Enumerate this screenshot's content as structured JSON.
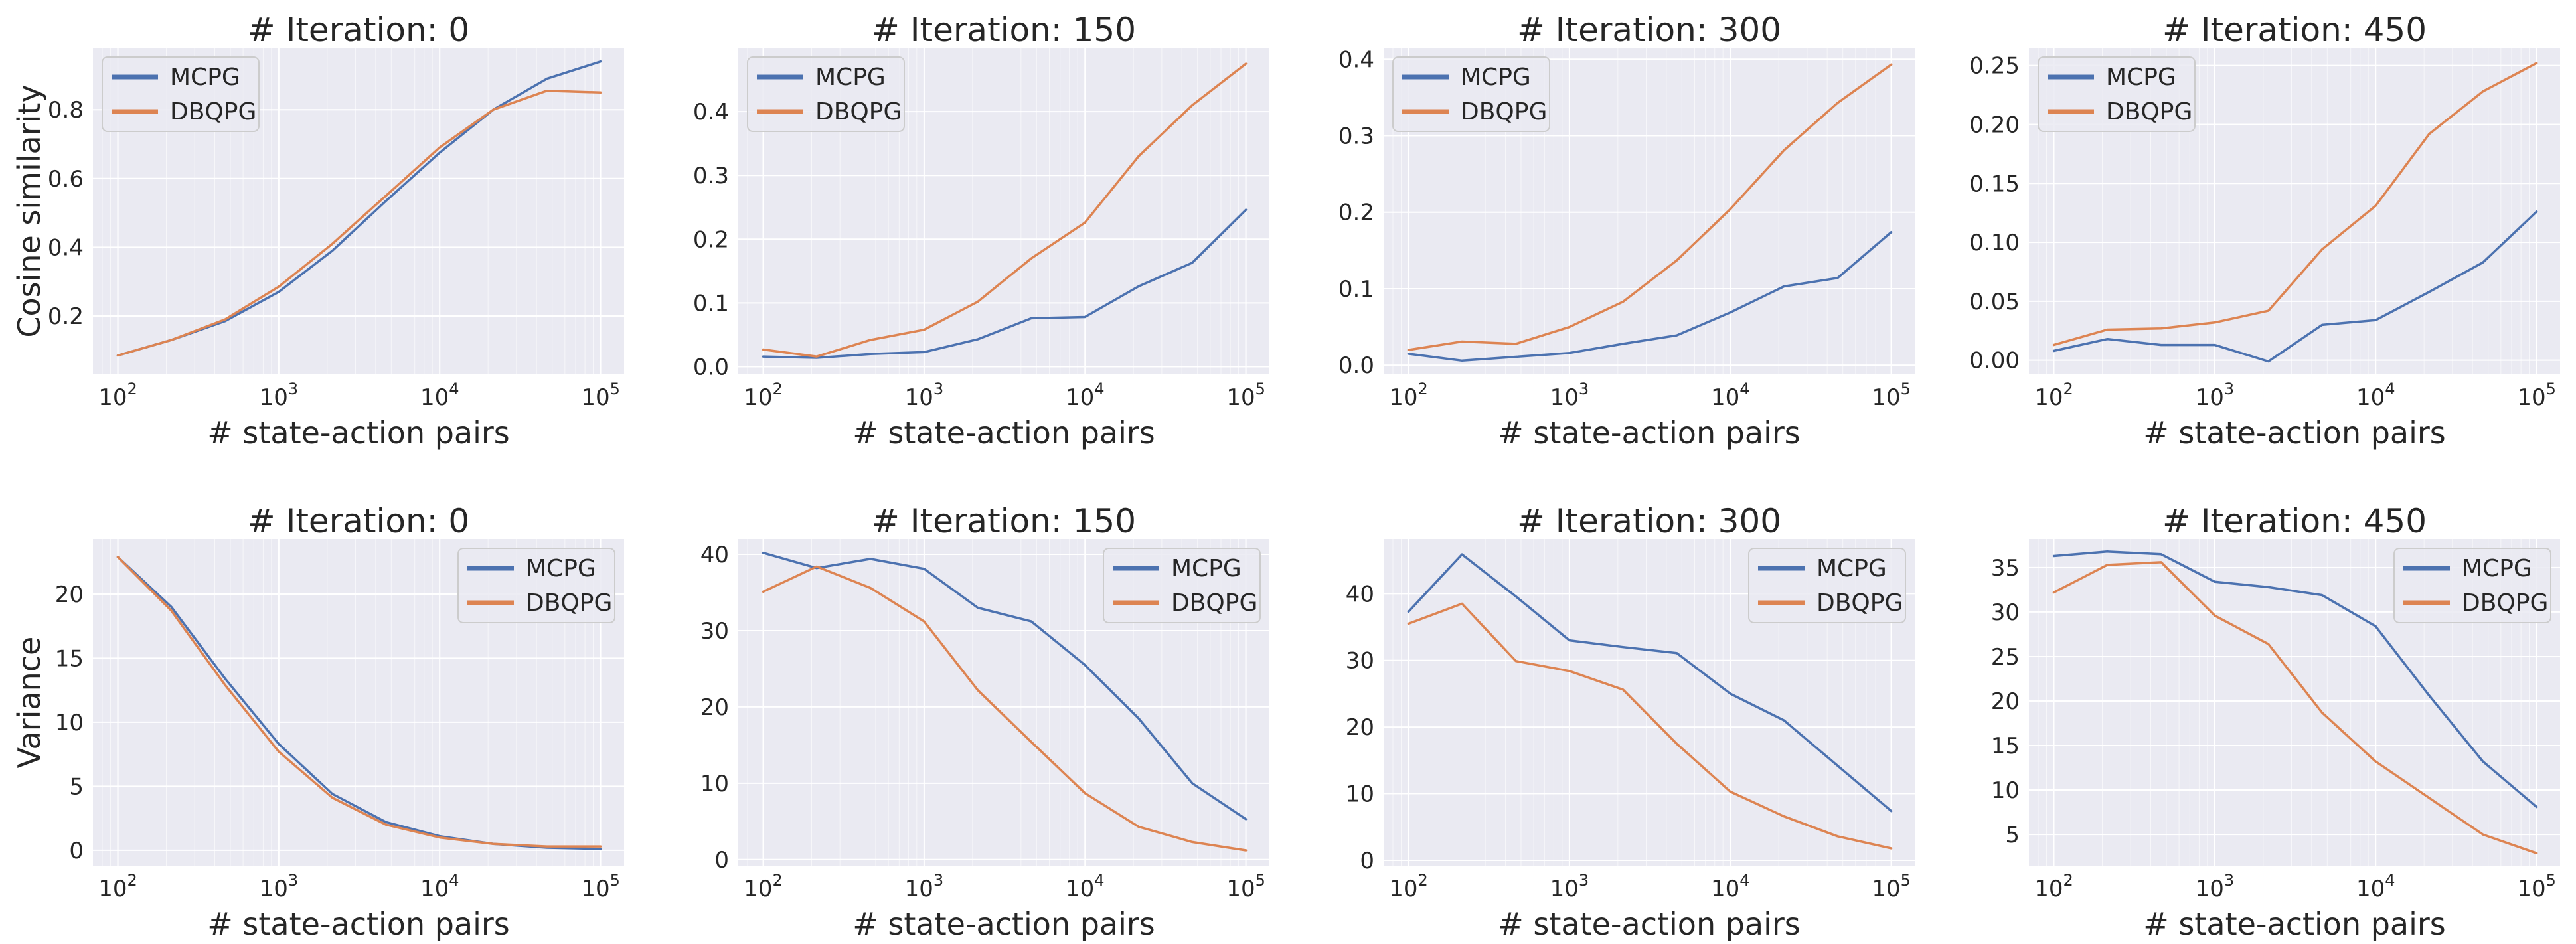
{
  "chart_data": [
    {
      "type": "line",
      "title": "# Iteration: 0",
      "xlabel": "# state-action pairs",
      "ylabel": "Cosine similarity",
      "xscale": "log",
      "xlim": [
        70,
        140000
      ],
      "ylim": [
        0.03,
        0.98
      ],
      "yticks": [
        0.2,
        0.4,
        0.6,
        0.8
      ],
      "ytick_labels": [
        "0.2",
        "0.4",
        "0.6",
        "0.8"
      ],
      "xticks": [
        100,
        1000,
        10000,
        100000
      ],
      "xtick_labels": [
        "10^2",
        "10^3",
        "10^4",
        "10^5"
      ],
      "grid": true,
      "legend": "top-left",
      "x": [
        100,
        215,
        464,
        1000,
        2154,
        4642,
        10000,
        21544,
        46416,
        100000
      ],
      "series": [
        {
          "name": "MCPG",
          "color": "#4c72b0",
          "values": [
            0.085,
            0.13,
            0.185,
            0.27,
            0.39,
            0.535,
            0.675,
            0.8,
            0.89,
            0.94
          ]
        },
        {
          "name": "DBQPG",
          "color": "#dd8452",
          "values": [
            0.085,
            0.13,
            0.19,
            0.285,
            0.41,
            0.55,
            0.69,
            0.8,
            0.855,
            0.85
          ]
        }
      ]
    },
    {
      "type": "line",
      "title": "# Iteration: 150",
      "xlabel": "# state-action pairs",
      "ylabel": "",
      "xscale": "log",
      "xlim": [
        70,
        140000
      ],
      "ylim": [
        -0.012,
        0.5
      ],
      "yticks": [
        0.0,
        0.1,
        0.2,
        0.3,
        0.4
      ],
      "ytick_labels": [
        "0.0",
        "0.1",
        "0.2",
        "0.3",
        "0.4"
      ],
      "xticks": [
        100,
        1000,
        10000,
        100000
      ],
      "xtick_labels": [
        "10^2",
        "10^3",
        "10^4",
        "10^5"
      ],
      "grid": true,
      "legend": "top-left",
      "x": [
        100,
        215,
        464,
        1000,
        2154,
        4642,
        10000,
        21544,
        46416,
        100000
      ],
      "series": [
        {
          "name": "MCPG",
          "color": "#4c72b0",
          "values": [
            0.016,
            0.014,
            0.02,
            0.023,
            0.043,
            0.076,
            0.078,
            0.126,
            0.163,
            0.246
          ]
        },
        {
          "name": "DBQPG",
          "color": "#dd8452",
          "values": [
            0.027,
            0.016,
            0.042,
            0.058,
            0.102,
            0.17,
            0.226,
            0.33,
            0.41,
            0.475
          ]
        }
      ]
    },
    {
      "type": "line",
      "title": "# Iteration: 300",
      "xlabel": "# state-action pairs",
      "ylabel": "",
      "xscale": "log",
      "xlim": [
        70,
        140000
      ],
      "ylim": [
        -0.012,
        0.415
      ],
      "yticks": [
        0.0,
        0.1,
        0.2,
        0.3,
        0.4
      ],
      "ytick_labels": [
        "0.0",
        "0.1",
        "0.2",
        "0.3",
        "0.4"
      ],
      "xticks": [
        100,
        1000,
        10000,
        100000
      ],
      "xtick_labels": [
        "10^2",
        "10^3",
        "10^4",
        "10^5"
      ],
      "grid": true,
      "legend": "top-left",
      "x": [
        100,
        215,
        464,
        1000,
        2154,
        4642,
        10000,
        21544,
        46416,
        100000
      ],
      "series": [
        {
          "name": "MCPG",
          "color": "#4c72b0",
          "values": [
            0.015,
            0.006,
            0.011,
            0.016,
            0.028,
            0.039,
            0.069,
            0.103,
            0.114,
            0.174
          ]
        },
        {
          "name": "DBQPG",
          "color": "#dd8452",
          "values": [
            0.02,
            0.031,
            0.028,
            0.05,
            0.083,
            0.137,
            0.204,
            0.281,
            0.343,
            0.393
          ]
        }
      ]
    },
    {
      "type": "line",
      "title": "# Iteration: 450",
      "xlabel": "# state-action pairs",
      "ylabel": "",
      "xscale": "log",
      "xlim": [
        70,
        140000
      ],
      "ylim": [
        -0.012,
        0.265
      ],
      "yticks": [
        0.0,
        0.05,
        0.1,
        0.15,
        0.2,
        0.25
      ],
      "ytick_labels": [
        "0.00",
        "0.05",
        "0.10",
        "0.15",
        "0.20",
        "0.25"
      ],
      "xticks": [
        100,
        1000,
        10000,
        100000
      ],
      "xtick_labels": [
        "10^2",
        "10^3",
        "10^4",
        "10^5"
      ],
      "grid": true,
      "legend": "top-left",
      "x": [
        100,
        215,
        464,
        1000,
        2154,
        4642,
        10000,
        21544,
        46416,
        100000
      ],
      "series": [
        {
          "name": "MCPG",
          "color": "#4c72b0",
          "values": [
            0.008,
            0.018,
            0.013,
            0.013,
            -0.001,
            0.03,
            0.034,
            0.058,
            0.083,
            0.126
          ]
        },
        {
          "name": "DBQPG",
          "color": "#dd8452",
          "values": [
            0.013,
            0.026,
            0.027,
            0.032,
            0.042,
            0.094,
            0.131,
            0.192,
            0.228,
            0.252
          ]
        }
      ]
    },
    {
      "type": "line",
      "title": "# Iteration: 0",
      "xlabel": "# state-action pairs",
      "ylabel": "Variance",
      "xscale": "log",
      "xlim": [
        70,
        140000
      ],
      "ylim": [
        -1.2,
        24.3
      ],
      "yticks": [
        0,
        5,
        10,
        15,
        20
      ],
      "ytick_labels": [
        "0",
        "5",
        "10",
        "15",
        "20"
      ],
      "xticks": [
        100,
        1000,
        10000,
        100000
      ],
      "xtick_labels": [
        "10^2",
        "10^3",
        "10^4",
        "10^5"
      ],
      "grid": true,
      "legend": "top-right",
      "x": [
        100,
        215,
        464,
        1000,
        2154,
        4642,
        10000,
        21544,
        46416,
        100000
      ],
      "series": [
        {
          "name": "MCPG",
          "color": "#4c72b0",
          "values": [
            22.9,
            19.0,
            13.4,
            8.3,
            4.4,
            2.2,
            1.1,
            0.5,
            0.2,
            0.1
          ]
        },
        {
          "name": "DBQPG",
          "color": "#dd8452",
          "values": [
            22.9,
            18.7,
            12.9,
            7.7,
            4.1,
            2.0,
            1.0,
            0.5,
            0.3,
            0.3
          ]
        }
      ]
    },
    {
      "type": "line",
      "title": "# Iteration: 150",
      "xlabel": "# state-action pairs",
      "ylabel": "",
      "xscale": "log",
      "xlim": [
        70,
        140000
      ],
      "ylim": [
        -0.8,
        42.0
      ],
      "yticks": [
        0,
        10,
        20,
        30,
        40
      ],
      "ytick_labels": [
        "0",
        "10",
        "20",
        "30",
        "40"
      ],
      "xticks": [
        100,
        1000,
        10000,
        100000
      ],
      "xtick_labels": [
        "10^2",
        "10^3",
        "10^4",
        "10^5"
      ],
      "grid": true,
      "legend": "top-right",
      "x": [
        100,
        215,
        464,
        1000,
        2154,
        4642,
        10000,
        21544,
        46416,
        100000
      ],
      "series": [
        {
          "name": "MCPG",
          "color": "#4c72b0",
          "values": [
            40.2,
            38.2,
            39.4,
            38.1,
            33.0,
            31.2,
            25.5,
            18.5,
            10.0,
            5.3
          ]
        },
        {
          "name": "DBQPG",
          "color": "#dd8452",
          "values": [
            35.1,
            38.4,
            35.6,
            31.2,
            22.2,
            15.4,
            8.7,
            4.3,
            2.3,
            1.2
          ]
        }
      ]
    },
    {
      "type": "line",
      "title": "# Iteration: 300",
      "xlabel": "# state-action pairs",
      "ylabel": "",
      "xscale": "log",
      "xlim": [
        70,
        140000
      ],
      "ylim": [
        -0.8,
        48.2
      ],
      "yticks": [
        0,
        10,
        20,
        30,
        40
      ],
      "ytick_labels": [
        "0",
        "10",
        "20",
        "30",
        "40"
      ],
      "xticks": [
        100,
        1000,
        10000,
        100000
      ],
      "xtick_labels": [
        "10^2",
        "10^3",
        "10^4",
        "10^5"
      ],
      "grid": true,
      "legend": "top-right",
      "x": [
        100,
        215,
        464,
        1000,
        2154,
        4642,
        10000,
        21544,
        46416,
        100000
      ],
      "series": [
        {
          "name": "MCPG",
          "color": "#4c72b0",
          "values": [
            37.3,
            45.9,
            39.6,
            33.0,
            32.0,
            31.1,
            25.0,
            21.0,
            14.2,
            7.4
          ]
        },
        {
          "name": "DBQPG",
          "color": "#dd8452",
          "values": [
            35.5,
            38.5,
            29.9,
            28.4,
            25.6,
            17.5,
            10.3,
            6.6,
            3.6,
            1.8
          ]
        }
      ]
    },
    {
      "type": "line",
      "title": "# Iteration: 450",
      "xlabel": "# state-action pairs",
      "ylabel": "",
      "xscale": "log",
      "xlim": [
        70,
        140000
      ],
      "ylim": [
        1.5,
        38.2
      ],
      "yticks": [
        5,
        10,
        15,
        20,
        25,
        30,
        35
      ],
      "ytick_labels": [
        "5",
        "10",
        "15",
        "20",
        "25",
        "30",
        "35"
      ],
      "xticks": [
        100,
        1000,
        10000,
        100000
      ],
      "xtick_labels": [
        "10^2",
        "10^3",
        "10^4",
        "10^5"
      ],
      "grid": true,
      "legend": "top-right",
      "x": [
        100,
        215,
        464,
        1000,
        2154,
        4642,
        10000,
        21544,
        46416,
        100000
      ],
      "series": [
        {
          "name": "MCPG",
          "color": "#4c72b0",
          "values": [
            36.3,
            36.8,
            36.5,
            33.4,
            32.8,
            31.9,
            28.4,
            20.6,
            13.2,
            8.1
          ]
        },
        {
          "name": "DBQPG",
          "color": "#dd8452",
          "values": [
            32.2,
            35.3,
            35.6,
            29.6,
            26.4,
            18.7,
            13.2,
            9.1,
            5.0,
            2.9
          ]
        }
      ]
    }
  ]
}
